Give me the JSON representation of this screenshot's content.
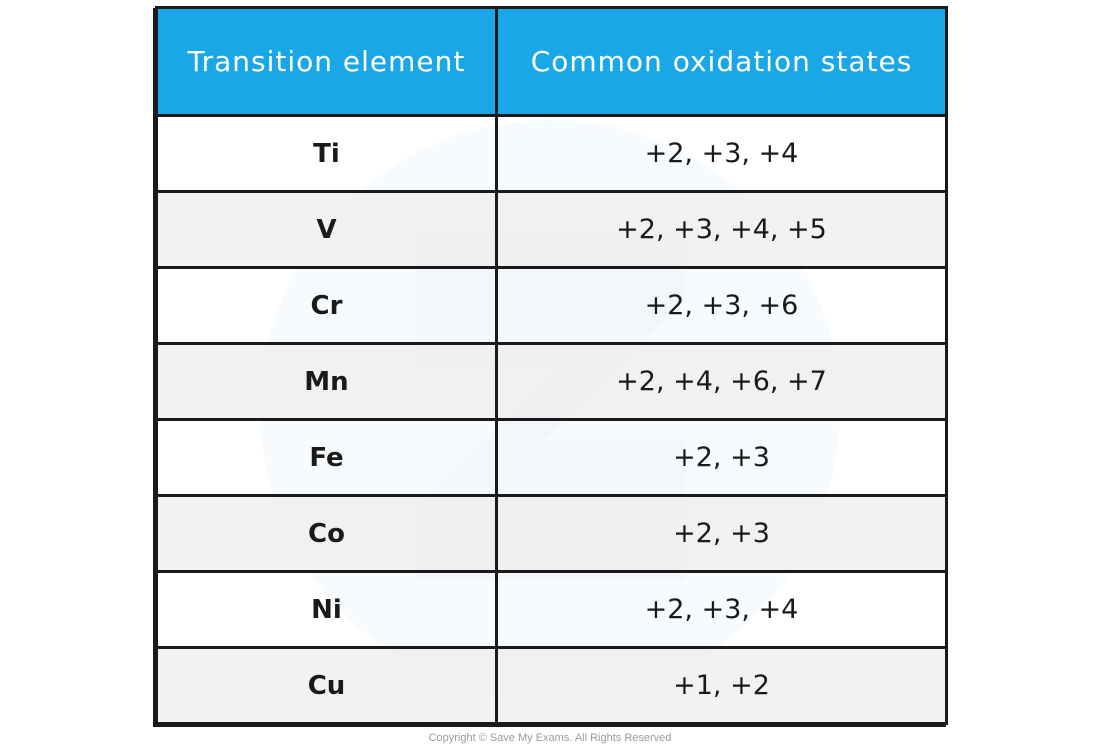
{
  "table": {
    "headers": [
      "Transition element",
      "Common oxidation states"
    ],
    "rows": [
      {
        "element": "Ti",
        "states": "+2, +3, +4"
      },
      {
        "element": "V",
        "states": "+2, +3, +4, +5"
      },
      {
        "element": "Cr",
        "states": "+2,  +3, +6"
      },
      {
        "element": "Mn",
        "states": "+2, +4, +6, +7"
      },
      {
        "element": "Fe",
        "states": "+2, +3"
      },
      {
        "element": "Co",
        "states": "+2, +3"
      },
      {
        "element": "Ni",
        "states": "+2,  +3, +4"
      },
      {
        "element": "Cu",
        "states": "+1, +2"
      }
    ]
  },
  "footer": {
    "copyright": "Copyright © Save My Exams. All Rights Reserved"
  },
  "colors": {
    "header_bg": "#1aa7e8",
    "header_text": "#ffffff",
    "border": "#1a1a1a",
    "alt_row": "#f0f0f0"
  }
}
